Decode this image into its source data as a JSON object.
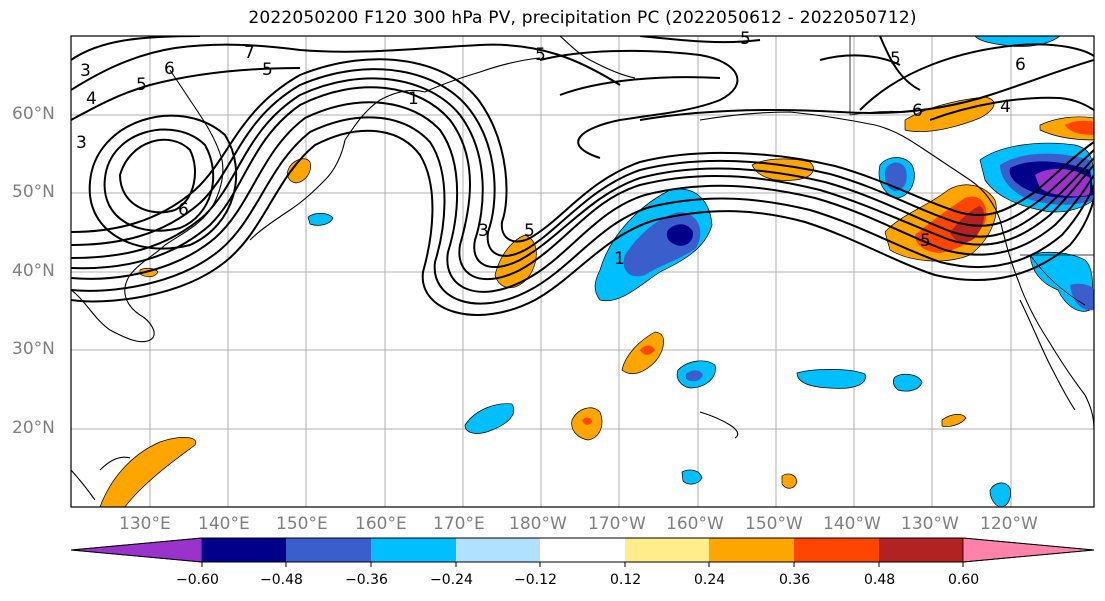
{
  "title": "2022050200 F120 300 hPa PV, precipitation PC (2022050612 - 2022050712)",
  "map": {
    "lat_ticks": [
      "60°N",
      "50°N",
      "40°N",
      "30°N",
      "20°N"
    ],
    "lon_ticks": [
      "130°E",
      "140°E",
      "150°E",
      "160°E",
      "170°E",
      "180°W",
      "170°W",
      "160°W",
      "150°W",
      "140°W",
      "130°W",
      "120°W"
    ],
    "contour_labels": [
      "7",
      "5",
      "6",
      "3",
      "4",
      "5",
      "6",
      "1",
      "5",
      "5",
      "6",
      "3",
      "5",
      "1",
      "5",
      "6",
      "4",
      "5",
      "3"
    ]
  },
  "colorbar": {
    "colors": [
      "#9933cc",
      "#00008b",
      "#3a5fcd",
      "#00bfff",
      "#b0e2ff",
      "#ffffff",
      "#ffec8b",
      "#ffa500",
      "#ff4500",
      "#b22222",
      "#ff82ab"
    ],
    "labels": [
      "−0.60",
      "−0.48",
      "−0.36",
      "−0.24",
      "−0.12",
      "0.12",
      "0.24",
      "0.36",
      "0.48",
      "0.60"
    ]
  }
}
